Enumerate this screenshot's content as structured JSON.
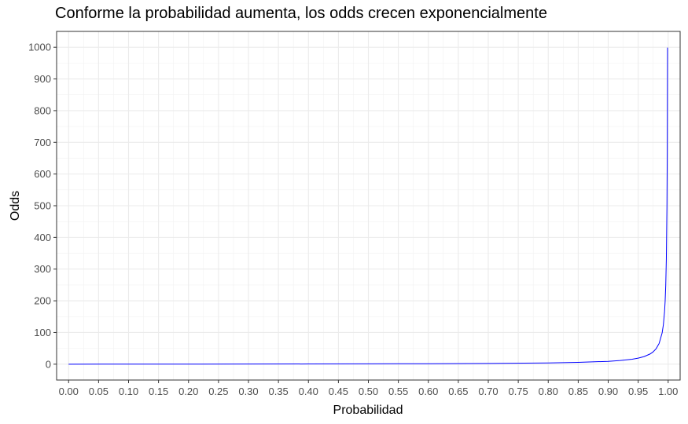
{
  "chart_data": {
    "type": "line",
    "title": "Conforme la probabilidad aumenta, los odds crecen exponencialmente",
    "xlabel": "Probabilidad",
    "ylabel": "Odds",
    "xlim": [
      -0.02,
      1.02
    ],
    "ylim": [
      -50,
      1050
    ],
    "x_ticks": [
      "0.00",
      "0.05",
      "0.10",
      "0.15",
      "0.20",
      "0.25",
      "0.30",
      "0.35",
      "0.40",
      "0.45",
      "0.50",
      "0.55",
      "0.60",
      "0.65",
      "0.70",
      "0.75",
      "0.80",
      "0.85",
      "0.90",
      "0.95",
      "1.00"
    ],
    "y_ticks": [
      "0",
      "100",
      "200",
      "300",
      "400",
      "500",
      "600",
      "700",
      "800",
      "900",
      "1000"
    ],
    "grid": true,
    "line_color": "#0000ff",
    "series": [
      {
        "formula": "odds = p / (1 - p)",
        "x": [
          0.0,
          0.1,
          0.2,
          0.3,
          0.4,
          0.5,
          0.6,
          0.7,
          0.8,
          0.85,
          0.9,
          0.92,
          0.94,
          0.95,
          0.96,
          0.97,
          0.975,
          0.98,
          0.985,
          0.99,
          0.992,
          0.994,
          0.995,
          0.996,
          0.997,
          0.998,
          0.9985,
          0.999
        ],
        "y": [
          0,
          0.11,
          0.25,
          0.43,
          0.67,
          1,
          1.5,
          2.33,
          4,
          5.67,
          9,
          11.5,
          15.67,
          19,
          24,
          32.33,
          39,
          49,
          65.67,
          99,
          124,
          165.67,
          199,
          249,
          332.33,
          499,
          665.67,
          999
        ]
      }
    ]
  }
}
